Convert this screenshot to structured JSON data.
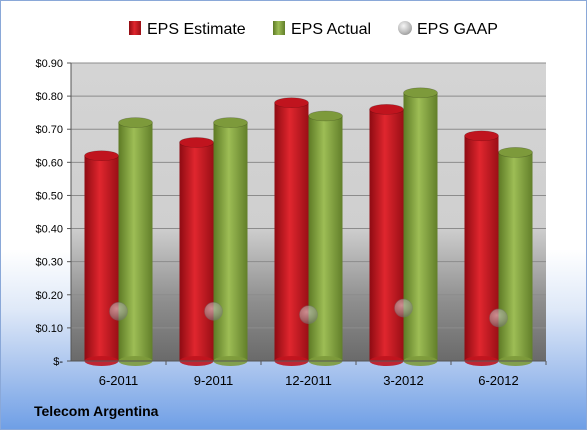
{
  "chart_data": {
    "type": "bar",
    "categories": [
      "6-2011",
      "9-2011",
      "12-2011",
      "3-2012",
      "6-2012"
    ],
    "series": [
      {
        "name": "EPS Estimate",
        "type": "bar",
        "color": "#c0141e",
        "values": [
          0.62,
          0.66,
          0.78,
          0.76,
          0.68
        ]
      },
      {
        "name": "EPS Actual",
        "type": "bar",
        "color": "#7d9a3b",
        "values": [
          0.72,
          0.72,
          0.74,
          0.81,
          0.63
        ]
      },
      {
        "name": "EPS GAAP",
        "type": "marker",
        "color": "#9a9a9a",
        "values": [
          0.15,
          0.15,
          0.14,
          0.16,
          0.13
        ]
      }
    ],
    "ylim": [
      0,
      0.9
    ],
    "yticks": [
      0,
      0.1,
      0.2,
      0.3,
      0.4,
      0.5,
      0.6,
      0.7,
      0.8,
      0.9
    ],
    "ytick_labels": [
      "$-",
      "$0.10",
      "$0.20",
      "$0.30",
      "$0.40",
      "$0.50",
      "$0.60",
      "$0.70",
      "$0.80",
      "$0.90"
    ],
    "legend_position": "top",
    "grid": true
  },
  "company_name": "Telecom Argentina"
}
